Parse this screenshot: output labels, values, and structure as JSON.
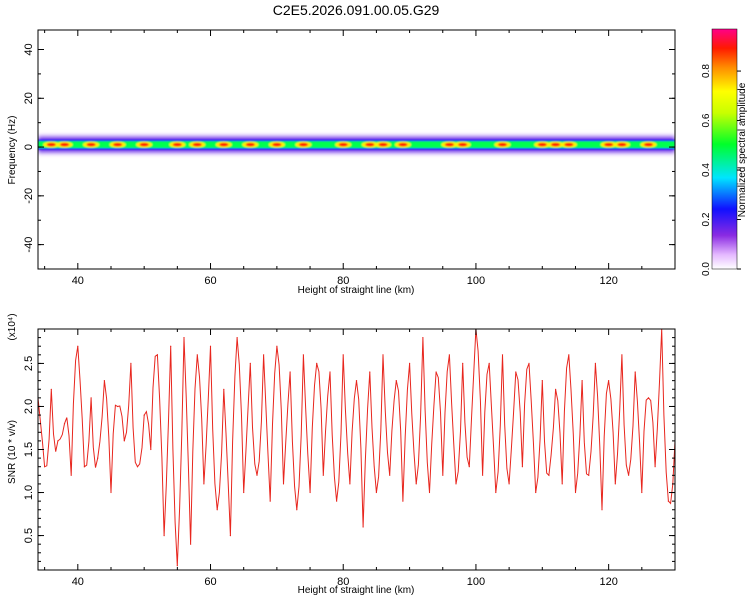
{
  "title": "C2E5.2026.091.00.05.G29",
  "chart_data": [
    {
      "type": "heatmap",
      "xlabel": "Height of straight line (km)",
      "ylabel": "Frequency (Hz)",
      "xlim": [
        34,
        130
      ],
      "ylim": [
        -50,
        48
      ],
      "x_ticks": [
        40,
        60,
        80,
        100,
        120
      ],
      "y_ticks": [
        -40,
        -20,
        0,
        20,
        40
      ],
      "grid": false,
      "colorbar": {
        "label": "Normalized spectral amplitude",
        "range": [
          0,
          0.97
        ],
        "ticks": [
          0.0,
          0.2,
          0.4,
          0.6,
          0.8
        ],
        "tick_labels": [
          "0.0",
          "0.2",
          "0.4",
          "0.6",
          "0.8"
        ],
        "colormap": "rainbow"
      },
      "ridge": {
        "center_freq_hz": 1,
        "peak_band_hz": 2,
        "high_amplitude_band_hz": 4,
        "low_amplitude_spread_hz": 8,
        "peak_heights_km": [
          36,
          38,
          42,
          46,
          50,
          55,
          58,
          62,
          66,
          70,
          74,
          80,
          84,
          86,
          89,
          96,
          98,
          104,
          110,
          112,
          114,
          120,
          122,
          126
        ]
      }
    },
    {
      "type": "line",
      "xlabel": "Height of straight line (km)",
      "ylabel": "SNR (10 * v/v)",
      "scale_label": "(x10⁴)",
      "xlim": [
        34,
        130
      ],
      "ylim": [
        0.1,
        2.9
      ],
      "x_ticks": [
        40,
        60,
        80,
        100,
        120
      ],
      "y_ticks": [
        0.5,
        1.0,
        1.5,
        2.0,
        2.5
      ],
      "y_tick_labels": [
        "0.5",
        "1.0",
        "1.5",
        "2.0",
        "2.5"
      ],
      "grid": false,
      "series": [
        {
          "color": "#e8261e",
          "x": [
            34,
            35,
            36,
            37,
            38,
            39,
            40,
            41,
            42,
            43,
            44,
            45,
            46,
            47,
            48,
            49,
            50,
            51,
            52,
            53,
            54,
            55,
            56,
            57,
            58,
            59,
            60,
            61,
            62,
            63,
            64,
            65,
            66,
            67,
            68,
            69,
            70,
            71,
            72,
            73,
            74,
            75,
            76,
            77,
            78,
            79,
            80,
            81,
            82,
            83,
            84,
            85,
            86,
            87,
            88,
            89,
            90,
            91,
            92,
            93,
            94,
            95,
            96,
            97,
            98,
            99,
            100,
            101,
            102,
            103,
            104,
            105,
            106,
            107,
            108,
            109,
            110,
            111,
            112,
            113,
            114,
            115,
            116,
            117,
            118,
            119,
            120,
            121,
            122,
            123,
            124,
            125,
            126,
            127,
            128,
            129,
            130
          ],
          "y": [
            2.1,
            1.3,
            2.2,
            1.6,
            1.8,
            1.2,
            2.7,
            1.3,
            2.1,
            1.4,
            2.3,
            1.0,
            2.0,
            1.6,
            2.5,
            1.3,
            1.9,
            1.5,
            2.6,
            0.5,
            2.7,
            0.15,
            2.8,
            0.4,
            2.6,
            1.1,
            2.7,
            0.8,
            2.2,
            0.5,
            2.8,
            1.0,
            2.5,
            1.2,
            2.6,
            0.9,
            2.7,
            1.1,
            2.4,
            0.8,
            2.6,
            1.0,
            2.5,
            1.2,
            2.4,
            0.9,
            2.6,
            1.1,
            2.3,
            0.6,
            2.4,
            1.0,
            2.6,
            1.2,
            2.3,
            0.9,
            2.5,
            1.1,
            2.8,
            1.0,
            2.4,
            1.2,
            2.6,
            1.1,
            2.5,
            1.3,
            2.9,
            1.2,
            2.5,
            1.0,
            2.6,
            1.1,
            2.4,
            1.3,
            2.5,
            1.0,
            2.3,
            1.2,
            2.2,
            1.1,
            2.6,
            1.0,
            2.3,
            1.2,
            2.5,
            0.8,
            2.3,
            1.1,
            2.6,
            1.2,
            2.4,
            1.0,
            2.1,
            1.3,
            2.9,
            0.9,
            1.6
          ]
        }
      ]
    }
  ]
}
